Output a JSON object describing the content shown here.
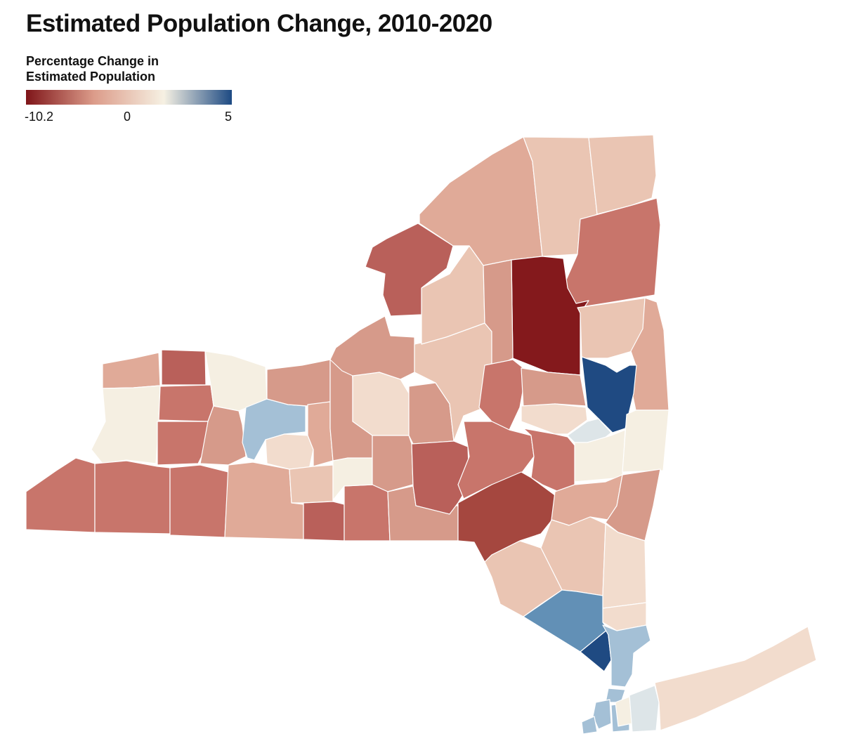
{
  "title": "Estimated Population Change, 2010-2020",
  "legend": {
    "title": "Percentage Change in\nEstimated Population",
    "min_label": "-10.2",
    "mid_label": "0",
    "max_label": "5",
    "min": -10.2,
    "max": 5,
    "colors": {
      "low": "#7f1519",
      "mid": "#f6f1e3",
      "high": "#1d4a83"
    }
  },
  "map": {
    "region": "New York State",
    "unit": "county",
    "color_scale": [
      "#84191c",
      "#a5473f",
      "#b9605a",
      "#c8756b",
      "#d69a8a",
      "#e0aa98",
      "#eac5b3",
      "#f2dccd",
      "#f5efe2",
      "#dde5e8",
      "#a4c0d6",
      "#6290b6",
      "#1f4a82"
    ]
  }
}
